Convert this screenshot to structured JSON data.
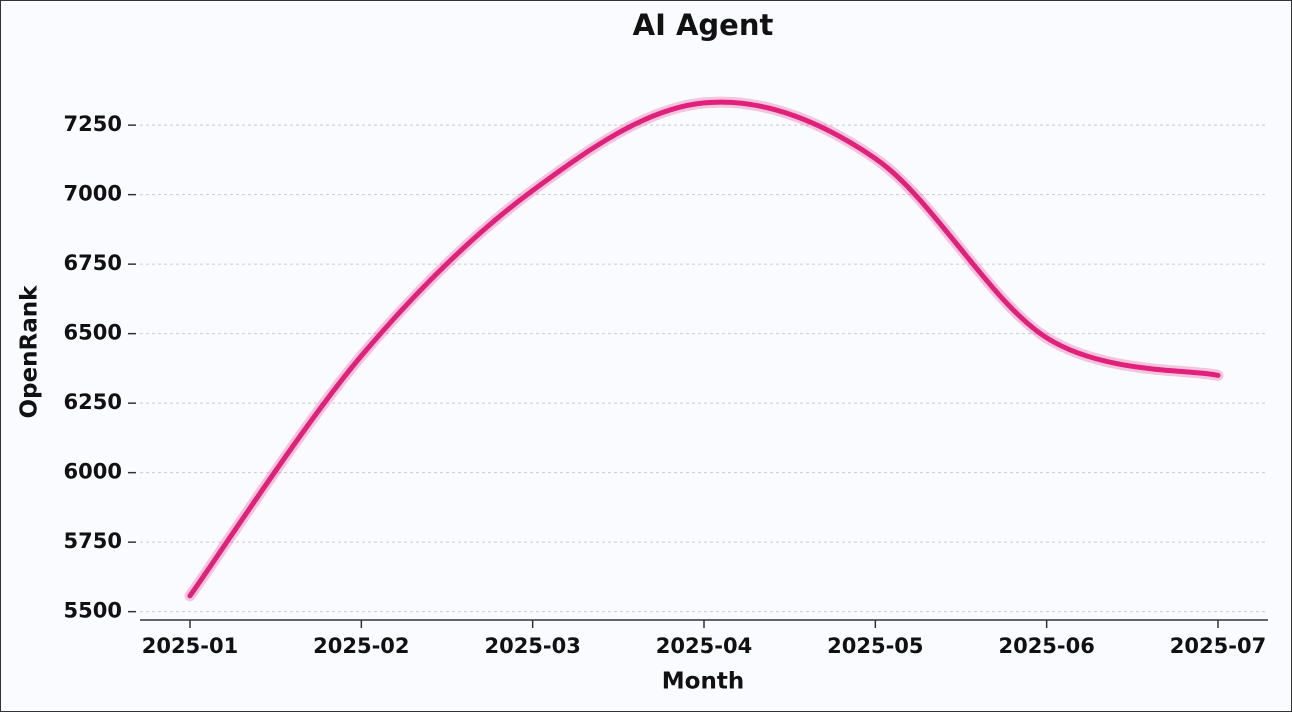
{
  "chart_data": {
    "type": "line",
    "title": "AI Agent",
    "x_label": "Month",
    "y_label": "OpenRank",
    "categories": [
      "2025-01",
      "2025-02",
      "2025-03",
      "2025-04",
      "2025-05",
      "2025-06",
      "2025-07"
    ],
    "series": [
      {
        "name": "AI Agent",
        "color": "#e0207a",
        "values": [
          5557,
          6420,
          7015,
          7330,
          7130,
          6485,
          6350
        ]
      }
    ],
    "ylim": [
      5470,
      7380
    ],
    "yticks": [
      5500,
      5750,
      6000,
      6250,
      6500,
      6750,
      7000,
      7250
    ],
    "grid": true
  }
}
